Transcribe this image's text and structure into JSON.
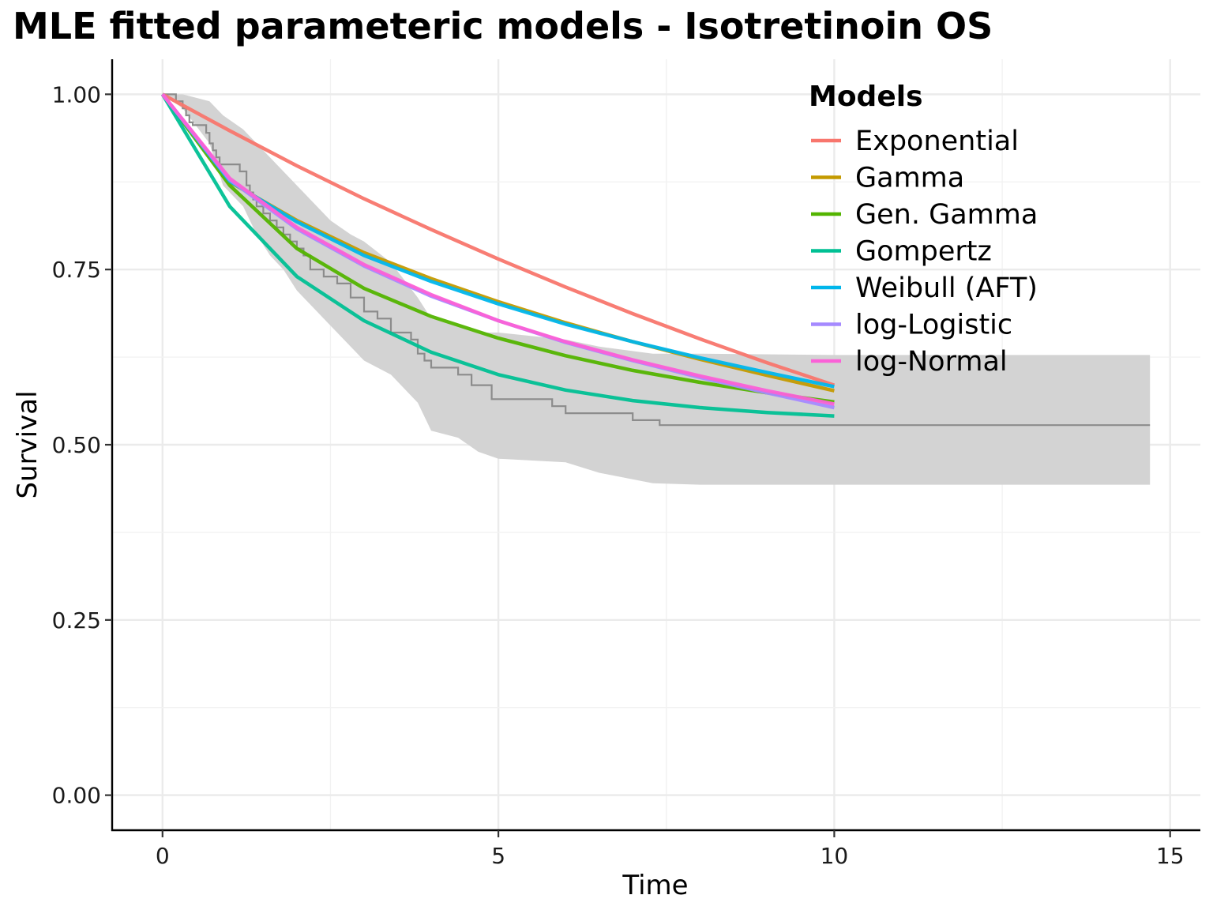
{
  "chart_data": {
    "type": "line",
    "title": "MLE fitted parameteric models - Isotretinoin OS",
    "xlabel": "Time",
    "ylabel": "Survival",
    "xlim": [
      -0.75,
      15.45
    ],
    "ylim": [
      -0.05,
      1.05
    ],
    "x_ticks": [
      0,
      5,
      10,
      15
    ],
    "x_tick_labels": [
      "0",
      "5",
      "10",
      "15"
    ],
    "y_ticks": [
      0,
      0.25,
      0.5,
      0.75,
      1.0
    ],
    "y_tick_labels": [
      "0.00",
      "0.25",
      "0.50",
      "0.75",
      "1.00"
    ],
    "grid": true,
    "legend": {
      "title": "Models",
      "position": "top-right"
    },
    "series": [
      {
        "name": "Exponential",
        "color": "#F8766D",
        "x": [
          0,
          1,
          2,
          3,
          4,
          5,
          6,
          7,
          8,
          9,
          10
        ],
        "y": [
          1.0,
          0.948,
          0.898,
          0.851,
          0.807,
          0.765,
          0.725,
          0.687,
          0.651,
          0.617,
          0.585
        ]
      },
      {
        "name": "Gamma",
        "color": "#C49A00",
        "x": [
          0,
          1,
          2,
          3,
          4,
          5,
          6,
          7,
          8,
          9,
          10
        ],
        "y": [
          1.0,
          0.875,
          0.82,
          0.774,
          0.737,
          0.704,
          0.674,
          0.647,
          0.622,
          0.599,
          0.577
        ]
      },
      {
        "name": "Gen. Gamma",
        "color": "#53B400",
        "x": [
          0,
          1,
          2,
          3,
          4,
          5,
          6,
          7,
          8,
          9,
          10
        ],
        "y": [
          1.0,
          0.87,
          0.78,
          0.723,
          0.683,
          0.652,
          0.627,
          0.606,
          0.589,
          0.574,
          0.561
        ]
      },
      {
        "name": "Gompertz",
        "color": "#00C094",
        "x": [
          0,
          1,
          2,
          3,
          4,
          5,
          6,
          7,
          8,
          9,
          10
        ],
        "y": [
          1.0,
          0.84,
          0.74,
          0.677,
          0.632,
          0.6,
          0.578,
          0.563,
          0.553,
          0.546,
          0.541
        ]
      },
      {
        "name": "Weibull (AFT)",
        "color": "#00B6EB",
        "x": [
          0,
          1,
          2,
          3,
          4,
          5,
          6,
          7,
          8,
          9,
          10
        ],
        "y": [
          1.0,
          0.876,
          0.818,
          0.77,
          0.733,
          0.701,
          0.672,
          0.647,
          0.624,
          0.603,
          0.583
        ]
      },
      {
        "name": "log-Logistic",
        "color": "#A58AFF",
        "x": [
          0,
          1,
          2,
          3,
          4,
          5,
          6,
          7,
          8,
          9,
          10
        ],
        "y": [
          1.0,
          0.878,
          0.808,
          0.755,
          0.712,
          0.677,
          0.646,
          0.62,
          0.596,
          0.574,
          0.553
        ]
      },
      {
        "name": "log-Normal",
        "color": "#FB61D7",
        "x": [
          0,
          1,
          2,
          3,
          4,
          5,
          6,
          7,
          8,
          9,
          10
        ],
        "y": [
          1.0,
          0.88,
          0.81,
          0.757,
          0.714,
          0.677,
          0.647,
          0.621,
          0.598,
          0.577,
          0.558
        ]
      }
    ],
    "km_curve": {
      "color": "#8C8C8C",
      "x": [
        0,
        0.2,
        0.3,
        0.35,
        0.4,
        0.45,
        0.5,
        0.65,
        0.7,
        0.75,
        0.8,
        0.85,
        0.9,
        1.15,
        1.25,
        1.3,
        1.35,
        1.4,
        1.5,
        1.6,
        1.7,
        1.8,
        1.9,
        2.0,
        2.1,
        2.2,
        2.4,
        2.6,
        2.8,
        3.0,
        3.2,
        3.4,
        3.7,
        3.8,
        3.9,
        4.0,
        4.4,
        4.6,
        4.9,
        5.8,
        6.0,
        7.0,
        7.4,
        14.7
      ],
      "y": [
        1.0,
        0.99,
        0.98,
        0.97,
        0.96,
        0.956,
        0.956,
        0.945,
        0.93,
        0.92,
        0.91,
        0.9,
        0.9,
        0.89,
        0.87,
        0.86,
        0.85,
        0.84,
        0.83,
        0.82,
        0.81,
        0.8,
        0.79,
        0.78,
        0.77,
        0.75,
        0.74,
        0.73,
        0.71,
        0.69,
        0.68,
        0.66,
        0.65,
        0.63,
        0.62,
        0.61,
        0.6,
        0.585,
        0.565,
        0.555,
        0.545,
        0.535,
        0.528,
        0.528
      ]
    },
    "ci_band": {
      "color": "#D3D3D3",
      "x": [
        0,
        0.3,
        0.7,
        0.9,
        1.2,
        1.4,
        1.6,
        1.8,
        2.0,
        2.2,
        2.5,
        2.8,
        3.0,
        3.4,
        3.8,
        4.0,
        4.4,
        4.7,
        5.0,
        6.0,
        6.5,
        7.3,
        8.0,
        10.0,
        14.7
      ],
      "upper": [
        1.0,
        1.0,
        0.99,
        0.97,
        0.95,
        0.93,
        0.91,
        0.89,
        0.87,
        0.85,
        0.82,
        0.8,
        0.79,
        0.76,
        0.71,
        0.68,
        0.67,
        0.66,
        0.66,
        0.65,
        0.64,
        0.63,
        0.63,
        0.628,
        0.628
      ],
      "lower": [
        1.0,
        0.98,
        0.93,
        0.87,
        0.84,
        0.8,
        0.77,
        0.75,
        0.72,
        0.7,
        0.67,
        0.64,
        0.62,
        0.6,
        0.56,
        0.52,
        0.51,
        0.49,
        0.48,
        0.475,
        0.46,
        0.445,
        0.443,
        0.443,
        0.443
      ]
    }
  }
}
